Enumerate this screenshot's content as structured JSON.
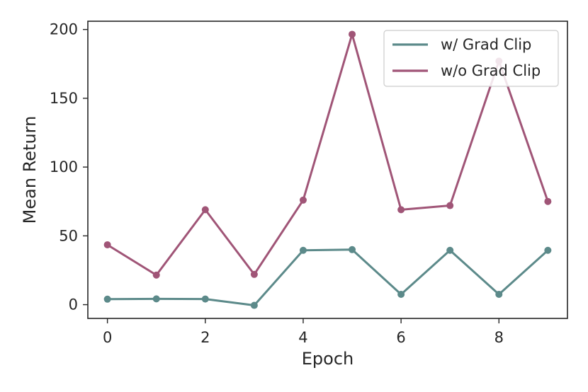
{
  "chart_data": {
    "type": "line",
    "title": "",
    "xlabel": "Epoch",
    "ylabel": "Mean Return",
    "x": [
      0,
      1,
      2,
      3,
      4,
      5,
      6,
      7,
      8,
      9
    ],
    "xlim": [
      -0.4,
      9.4
    ],
    "ylim": [
      -10,
      206
    ],
    "xticks": [
      0,
      2,
      4,
      6,
      8
    ],
    "yticks": [
      0,
      50,
      100,
      150,
      200
    ],
    "grid": false,
    "legend_position": "top-right",
    "series": [
      {
        "name": "w/ Grad Clip",
        "color": "#5c8a8a",
        "values": [
          4,
          4.2,
          4.1,
          -0.5,
          39.5,
          40,
          7.5,
          39.5,
          7.5,
          39.5
        ]
      },
      {
        "name": "w/o Grad Clip",
        "color": "#a05577",
        "values": [
          43.5,
          21.5,
          69,
          22,
          76,
          196.5,
          69,
          72,
          177,
          75
        ]
      }
    ]
  }
}
